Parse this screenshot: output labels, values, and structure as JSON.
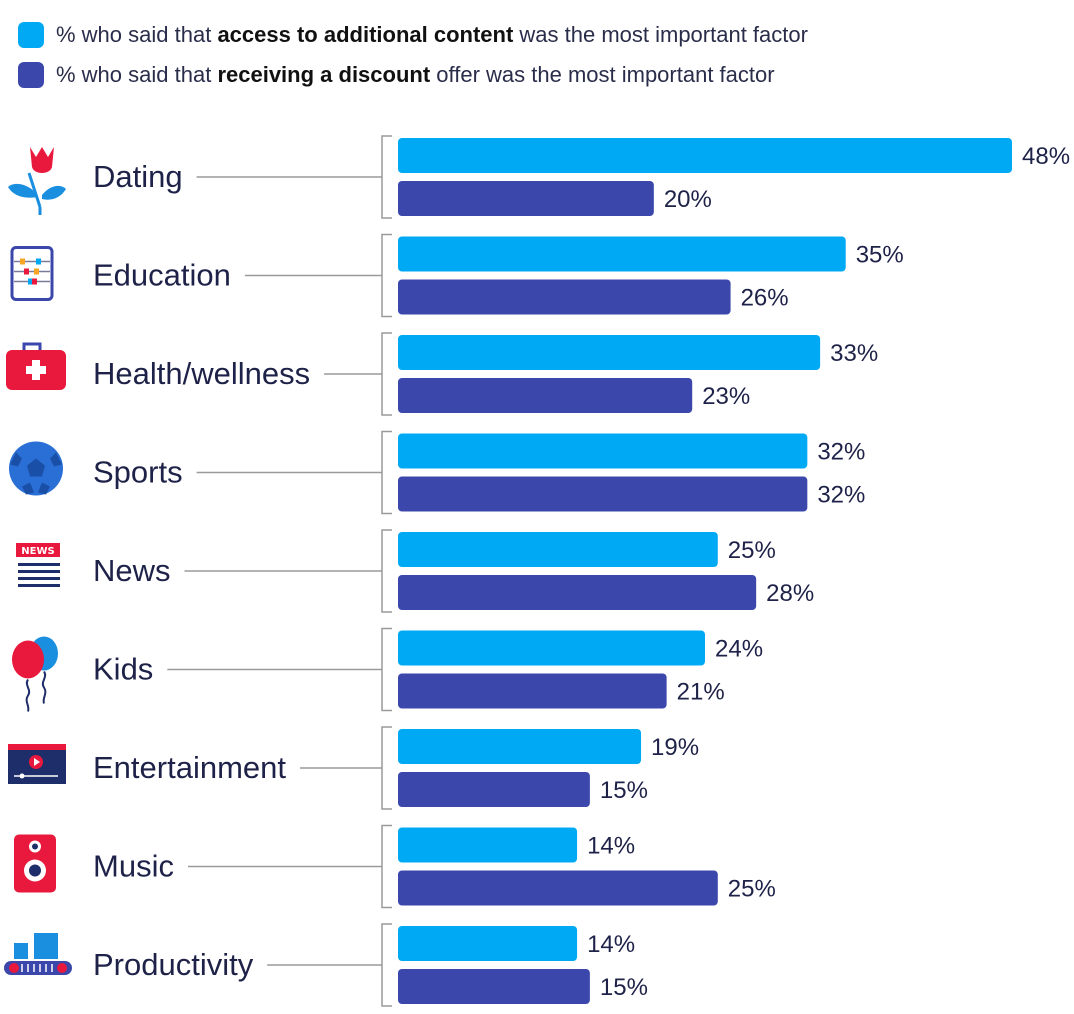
{
  "colors": {
    "content": "#00a9f4",
    "discount": "#3b47ab",
    "line": "#9a9a9a",
    "text": "#1e2248"
  },
  "legend": [
    {
      "pre": "% who said that ",
      "bold": "access to additional content",
      "post": " was the most important factor",
      "color": "#00a9f4"
    },
    {
      "pre": "% who said that ",
      "bold": "receiving a discount",
      "post": " offer was the most important factor",
      "color": "#3b47ab"
    }
  ],
  "chart_data": {
    "type": "bar",
    "orientation": "horizontal",
    "categories": [
      "Dating",
      "Education",
      "Health/wellness",
      "Sports",
      "News",
      "Kids",
      "Entertainment",
      "Music",
      "Productivity"
    ],
    "icons": [
      "tulip-icon",
      "abacus-icon",
      "first-aid-kit-icon",
      "soccer-ball-icon",
      "newspaper-icon",
      "balloons-icon",
      "video-player-icon",
      "speaker-icon",
      "conveyor-belt-icon"
    ],
    "series": [
      {
        "name": "% who said that access to additional content was the most important factor",
        "values": [
          48,
          35,
          33,
          32,
          25,
          24,
          19,
          14,
          14
        ],
        "labels": [
          "48%",
          "35%",
          "33%",
          "32%",
          "25%",
          "24%",
          "19%",
          "14%",
          "14%"
        ],
        "color": "#00a9f4"
      },
      {
        "name": "% who said that receiving a discount offer was the most important factor",
        "values": [
          20,
          26,
          23,
          32,
          28,
          21,
          15,
          25,
          15
        ],
        "labels": [
          "20%",
          "26%",
          "23%",
          "32%",
          "28%",
          "21%",
          "15%",
          "25%",
          "15%"
        ],
        "color": "#3b47ab"
      }
    ],
    "xlim": [
      0,
      48
    ]
  }
}
